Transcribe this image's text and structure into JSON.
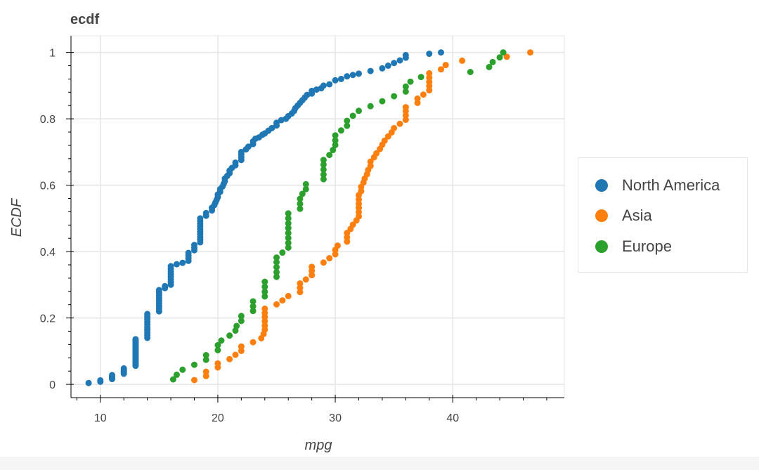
{
  "colors": {
    "North America": "#1f77b4",
    "Asia": "#ff7f0e",
    "Europe": "#2ca02c",
    "grid": "#e5e5e5",
    "axis": "#000000",
    "text": "#444444"
  },
  "chart_data": {
    "type": "scatter",
    "title": "ecdf",
    "xlabel": "mpg",
    "ylabel": "ECDF",
    "xlim": [
      7.5,
      49.5
    ],
    "ylim": [
      -0.04,
      1.05
    ],
    "x_ticks": [
      10,
      20,
      30,
      40
    ],
    "x_tick_labels": [
      "10",
      "20",
      "30",
      "40"
    ],
    "y_ticks": [
      0,
      0.2,
      0.4,
      0.6,
      0.8,
      1.0
    ],
    "y_tick_labels": [
      "0",
      "0.2",
      "0.4",
      "0.6",
      "0.8",
      "1"
    ],
    "grid": true,
    "legend_position": "right",
    "legend": [
      "North America",
      "Asia",
      "Europe"
    ],
    "series": [
      {
        "name": "North America",
        "points": [
          [
            9,
            0.004
          ],
          [
            10,
            0.008
          ],
          [
            10,
            0.012
          ],
          [
            11,
            0.016
          ],
          [
            11,
            0.02
          ],
          [
            11,
            0.024
          ],
          [
            11,
            0.028
          ],
          [
            12,
            0.032
          ],
          [
            12,
            0.036
          ],
          [
            12,
            0.04
          ],
          [
            12,
            0.044
          ],
          [
            12,
            0.048
          ],
          [
            13,
            0.056
          ],
          [
            13,
            0.06
          ],
          [
            13,
            0.064
          ],
          [
            13,
            0.068
          ],
          [
            13,
            0.072
          ],
          [
            13,
            0.076
          ],
          [
            13,
            0.08
          ],
          [
            13,
            0.084
          ],
          [
            13,
            0.088
          ],
          [
            13,
            0.092
          ],
          [
            13,
            0.096
          ],
          [
            13,
            0.1
          ],
          [
            13,
            0.104
          ],
          [
            13,
            0.108
          ],
          [
            13,
            0.112
          ],
          [
            13,
            0.116
          ],
          [
            13,
            0.12
          ],
          [
            13,
            0.124
          ],
          [
            13,
            0.128
          ],
          [
            13,
            0.132
          ],
          [
            13,
            0.136
          ],
          [
            14,
            0.14
          ],
          [
            14,
            0.148
          ],
          [
            14,
            0.156
          ],
          [
            14,
            0.164
          ],
          [
            14,
            0.172
          ],
          [
            14,
            0.18
          ],
          [
            14,
            0.188
          ],
          [
            14,
            0.196
          ],
          [
            14,
            0.204
          ],
          [
            14,
            0.212
          ],
          [
            15,
            0.22
          ],
          [
            15,
            0.228
          ],
          [
            15,
            0.236
          ],
          [
            15,
            0.244
          ],
          [
            15,
            0.252
          ],
          [
            15,
            0.26
          ],
          [
            15,
            0.268
          ],
          [
            15,
            0.276
          ],
          [
            15,
            0.284
          ],
          [
            15.5,
            0.29
          ],
          [
            15.5,
            0.296
          ],
          [
            16,
            0.3
          ],
          [
            16,
            0.308
          ],
          [
            16,
            0.316
          ],
          [
            16,
            0.324
          ],
          [
            16,
            0.332
          ],
          [
            16,
            0.34
          ],
          [
            16,
            0.348
          ],
          [
            16,
            0.356
          ],
          [
            16.5,
            0.362
          ],
          [
            17,
            0.366
          ],
          [
            17.5,
            0.372
          ],
          [
            17.5,
            0.38
          ],
          [
            17.5,
            0.388
          ],
          [
            17.5,
            0.396
          ],
          [
            18,
            0.404
          ],
          [
            18,
            0.412
          ],
          [
            18,
            0.42
          ],
          [
            18.5,
            0.428
          ],
          [
            18.5,
            0.436
          ],
          [
            18.5,
            0.444
          ],
          [
            18.5,
            0.452
          ],
          [
            18.5,
            0.46
          ],
          [
            18.5,
            0.468
          ],
          [
            18.5,
            0.476
          ],
          [
            18.5,
            0.484
          ],
          [
            18.5,
            0.492
          ],
          [
            18.5,
            0.5
          ],
          [
            19,
            0.508
          ],
          [
            19,
            0.516
          ],
          [
            19.5,
            0.524
          ],
          [
            19.5,
            0.532
          ],
          [
            19.7,
            0.54
          ],
          [
            19.8,
            0.548
          ],
          [
            19.9,
            0.556
          ],
          [
            20,
            0.564
          ],
          [
            20,
            0.572
          ],
          [
            20.2,
            0.58
          ],
          [
            20.2,
            0.588
          ],
          [
            20.4,
            0.596
          ],
          [
            20.5,
            0.604
          ],
          [
            20.6,
            0.612
          ],
          [
            20.6,
            0.62
          ],
          [
            20.8,
            0.628
          ],
          [
            21,
            0.636
          ],
          [
            21,
            0.644
          ],
          [
            21.2,
            0.652
          ],
          [
            21.5,
            0.66
          ],
          [
            21.5,
            0.668
          ],
          [
            22,
            0.676
          ],
          [
            22,
            0.684
          ],
          [
            22,
            0.692
          ],
          [
            22,
            0.7
          ],
          [
            22.4,
            0.708
          ],
          [
            22.6,
            0.716
          ],
          [
            23,
            0.724
          ],
          [
            23,
            0.732
          ],
          [
            23.2,
            0.74
          ],
          [
            23.5,
            0.744
          ],
          [
            23.8,
            0.752
          ],
          [
            24,
            0.756
          ],
          [
            24.3,
            0.764
          ],
          [
            24.6,
            0.772
          ],
          [
            25,
            0.78
          ],
          [
            25,
            0.788
          ],
          [
            25.4,
            0.796
          ],
          [
            25.8,
            0.8
          ],
          [
            26,
            0.808
          ],
          [
            26.3,
            0.816
          ],
          [
            26.5,
            0.824
          ],
          [
            26.6,
            0.832
          ],
          [
            26.8,
            0.84
          ],
          [
            27,
            0.848
          ],
          [
            27.2,
            0.856
          ],
          [
            27.4,
            0.864
          ],
          [
            27.6,
            0.872
          ],
          [
            28,
            0.876
          ],
          [
            28,
            0.884
          ],
          [
            28.4,
            0.888
          ],
          [
            28.8,
            0.892
          ],
          [
            29,
            0.9
          ],
          [
            29.5,
            0.904
          ],
          [
            30,
            0.916
          ],
          [
            30.5,
            0.92
          ],
          [
            31,
            0.928
          ],
          [
            31.5,
            0.932
          ],
          [
            32,
            0.936
          ],
          [
            33,
            0.944
          ],
          [
            34,
            0.952
          ],
          [
            34.5,
            0.96
          ],
          [
            35,
            0.968
          ],
          [
            35.5,
            0.976
          ],
          [
            36,
            0.984
          ],
          [
            36,
            0.992
          ],
          [
            38,
            0.996
          ],
          [
            39,
            1.0
          ]
        ]
      },
      {
        "name": "Asia",
        "points": [
          [
            18,
            0.013
          ],
          [
            19,
            0.025
          ],
          [
            19,
            0.038
          ],
          [
            20,
            0.051
          ],
          [
            20,
            0.063
          ],
          [
            21,
            0.076
          ],
          [
            21.5,
            0.089
          ],
          [
            22,
            0.101
          ],
          [
            22,
            0.114
          ],
          [
            23,
            0.127
          ],
          [
            23.7,
            0.139
          ],
          [
            23.9,
            0.152
          ],
          [
            24,
            0.165
          ],
          [
            24,
            0.177
          ],
          [
            24,
            0.19
          ],
          [
            24,
            0.203
          ],
          [
            24,
            0.215
          ],
          [
            24,
            0.228
          ],
          [
            25,
            0.241
          ],
          [
            25.5,
            0.253
          ],
          [
            26,
            0.266
          ],
          [
            27,
            0.278
          ],
          [
            27,
            0.291
          ],
          [
            27,
            0.304
          ],
          [
            27.5,
            0.316
          ],
          [
            28,
            0.329
          ],
          [
            28,
            0.342
          ],
          [
            28,
            0.354
          ],
          [
            29,
            0.367
          ],
          [
            29.5,
            0.38
          ],
          [
            30,
            0.392
          ],
          [
            30,
            0.405
          ],
          [
            30.2,
            0.418
          ],
          [
            31,
            0.43
          ],
          [
            31,
            0.443
          ],
          [
            31,
            0.456
          ],
          [
            31.3,
            0.468
          ],
          [
            31.5,
            0.481
          ],
          [
            31.8,
            0.494
          ],
          [
            32,
            0.506
          ],
          [
            32,
            0.519
          ],
          [
            32,
            0.532
          ],
          [
            32,
            0.544
          ],
          [
            32,
            0.557
          ],
          [
            32,
            0.57
          ],
          [
            32.2,
            0.582
          ],
          [
            32.2,
            0.595
          ],
          [
            32.4,
            0.608
          ],
          [
            32.5,
            0.62
          ],
          [
            32.7,
            0.633
          ],
          [
            32.8,
            0.646
          ],
          [
            33,
            0.658
          ],
          [
            33,
            0.671
          ],
          [
            33.3,
            0.684
          ],
          [
            33.5,
            0.696
          ],
          [
            33.8,
            0.709
          ],
          [
            34,
            0.722
          ],
          [
            34.2,
            0.734
          ],
          [
            34.5,
            0.747
          ],
          [
            34.8,
            0.759
          ],
          [
            35,
            0.772
          ],
          [
            35.5,
            0.785
          ],
          [
            36,
            0.797
          ],
          [
            36,
            0.81
          ],
          [
            36,
            0.823
          ],
          [
            36,
            0.835
          ],
          [
            37,
            0.848
          ],
          [
            37,
            0.861
          ],
          [
            37.5,
            0.873
          ],
          [
            38,
            0.886
          ],
          [
            38,
            0.899
          ],
          [
            38,
            0.911
          ],
          [
            38,
            0.924
          ],
          [
            38,
            0.937
          ],
          [
            39,
            0.949
          ],
          [
            39.4,
            0.962
          ],
          [
            40.8,
            0.975
          ],
          [
            44.6,
            0.987
          ],
          [
            46.6,
            1.0
          ]
        ]
      },
      {
        "name": "Europe",
        "points": [
          [
            16.2,
            0.015
          ],
          [
            16.5,
            0.029
          ],
          [
            17,
            0.044
          ],
          [
            18,
            0.059
          ],
          [
            19,
            0.074
          ],
          [
            19,
            0.088
          ],
          [
            20,
            0.103
          ],
          [
            20,
            0.118
          ],
          [
            20.3,
            0.132
          ],
          [
            21,
            0.147
          ],
          [
            21.5,
            0.162
          ],
          [
            21.6,
            0.176
          ],
          [
            22,
            0.191
          ],
          [
            22,
            0.206
          ],
          [
            23,
            0.221
          ],
          [
            23,
            0.235
          ],
          [
            23,
            0.25
          ],
          [
            24,
            0.265
          ],
          [
            24,
            0.279
          ],
          [
            24,
            0.294
          ],
          [
            24,
            0.309
          ],
          [
            25,
            0.324
          ],
          [
            25,
            0.338
          ],
          [
            25,
            0.353
          ],
          [
            25,
            0.368
          ],
          [
            25,
            0.382
          ],
          [
            25.5,
            0.397
          ],
          [
            26,
            0.412
          ],
          [
            26,
            0.426
          ],
          [
            26,
            0.441
          ],
          [
            26,
            0.456
          ],
          [
            26,
            0.471
          ],
          [
            26,
            0.485
          ],
          [
            26,
            0.5
          ],
          [
            26,
            0.515
          ],
          [
            27,
            0.529
          ],
          [
            27,
            0.544
          ],
          [
            27,
            0.559
          ],
          [
            27.2,
            0.574
          ],
          [
            27.5,
            0.588
          ],
          [
            27.5,
            0.603
          ],
          [
            29,
            0.618
          ],
          [
            29,
            0.632
          ],
          [
            29,
            0.647
          ],
          [
            29,
            0.662
          ],
          [
            29,
            0.676
          ],
          [
            29.5,
            0.691
          ],
          [
            29.8,
            0.706
          ],
          [
            30,
            0.721
          ],
          [
            30,
            0.735
          ],
          [
            30,
            0.75
          ],
          [
            30.5,
            0.765
          ],
          [
            31,
            0.779
          ],
          [
            31,
            0.794
          ],
          [
            31.5,
            0.809
          ],
          [
            32,
            0.824
          ],
          [
            33,
            0.838
          ],
          [
            34,
            0.853
          ],
          [
            35,
            0.868
          ],
          [
            36,
            0.882
          ],
          [
            36,
            0.897
          ],
          [
            36.4,
            0.912
          ],
          [
            37.3,
            0.926
          ],
          [
            41.5,
            0.941
          ],
          [
            43.1,
            0.956
          ],
          [
            43.4,
            0.971
          ],
          [
            44,
            0.985
          ],
          [
            44.3,
            1.0
          ]
        ]
      }
    ]
  }
}
